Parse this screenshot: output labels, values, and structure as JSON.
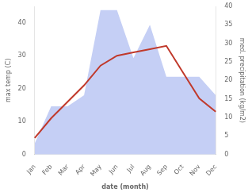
{
  "chart_data": {
    "type": "line",
    "xlabel": "date (month)",
    "ylabel": "max temp (C)",
    "y2label": "med. precipitation (kg/m2)",
    "categories": [
      "Jan",
      "Feb",
      "Mar",
      "Apr",
      "May",
      "Jun",
      "Jul",
      "Aug",
      "Sep",
      "Oct",
      "Nov",
      "Dec"
    ],
    "series": [
      {
        "type": "area",
        "axis": "y2",
        "color": "#c5cff5",
        "values": [
          3,
          13,
          13,
          16,
          39,
          39,
          26,
          35,
          21,
          21,
          21,
          16
        ]
      },
      {
        "type": "line",
        "color": "#c0392b",
        "values": [
          5,
          11,
          16,
          21,
          27,
          30,
          31,
          32,
          33,
          25,
          17,
          13
        ]
      }
    ],
    "ylim": [
      0,
      45
    ],
    "yticks": [
      0,
      10,
      20,
      30,
      40
    ],
    "y2lim": [
      0,
      40
    ],
    "y2ticks": [
      0,
      5,
      10,
      15,
      20,
      25,
      30,
      35,
      40
    ],
    "grid": false
  }
}
